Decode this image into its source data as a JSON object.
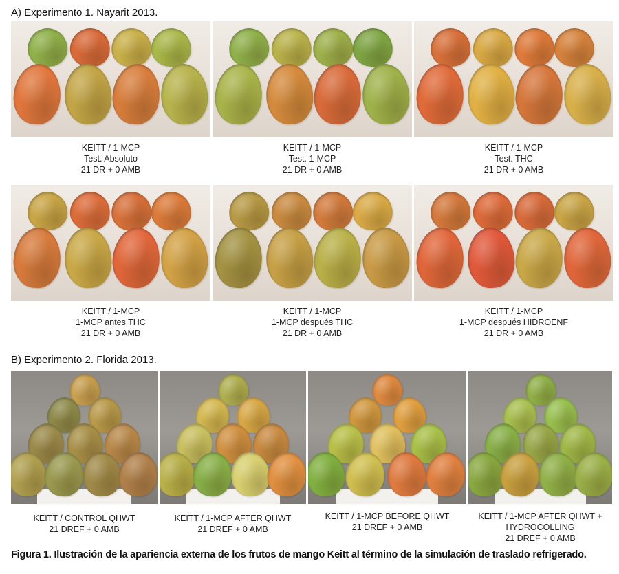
{
  "section_a": {
    "title": "A) Experimento 1. Nayarit 2013.",
    "panels": [
      {
        "lines": [
          "KEITT / 1-MCP",
          "Test. Absoluto",
          "21 DR + 0 AMB"
        ]
      },
      {
        "lines": [
          "KEITT / 1-MCP",
          "Test. 1-MCP",
          "21 DR + 0 AMB"
        ]
      },
      {
        "lines": [
          "KEITT / 1-MCP",
          "Test. THC",
          "21 DR + 0 AMB"
        ]
      },
      {
        "lines": [
          "KEITT / 1-MCP",
          "1-MCP antes THC",
          "21 DR + 0 AMB"
        ]
      },
      {
        "lines": [
          "KEITT / 1-MCP",
          "1-MCP después THC",
          "21 DR + 0 AMB"
        ]
      },
      {
        "lines": [
          "KEITT / 1-MCP",
          "1-MCP después HIDROENF",
          "21 DR + 0 AMB"
        ]
      }
    ]
  },
  "section_b": {
    "title": "B) Experimento 2. Florida 2013.",
    "panels": [
      {
        "lines": [
          "KEITT / CONTROL QHWT",
          "21 DREF + 0 AMB"
        ]
      },
      {
        "lines": [
          "KEITT / 1-MCP AFTER QHWT",
          "21 DREF + 0 AMB"
        ]
      },
      {
        "lines": [
          "KEITT / 1-MCP BEFORE QHWT",
          "21 DREF + 0 AMB"
        ]
      },
      {
        "lines": [
          "KEITT / 1-MCP AFTER QHWT +",
          "HYDROCOLLING",
          "21 DREF + 0 AMB"
        ]
      }
    ]
  },
  "figure_caption": "Figura 1. Ilustración de la apariencia externa de los frutos de mango Keitt al término de la simulación de traslado refrigerado."
}
